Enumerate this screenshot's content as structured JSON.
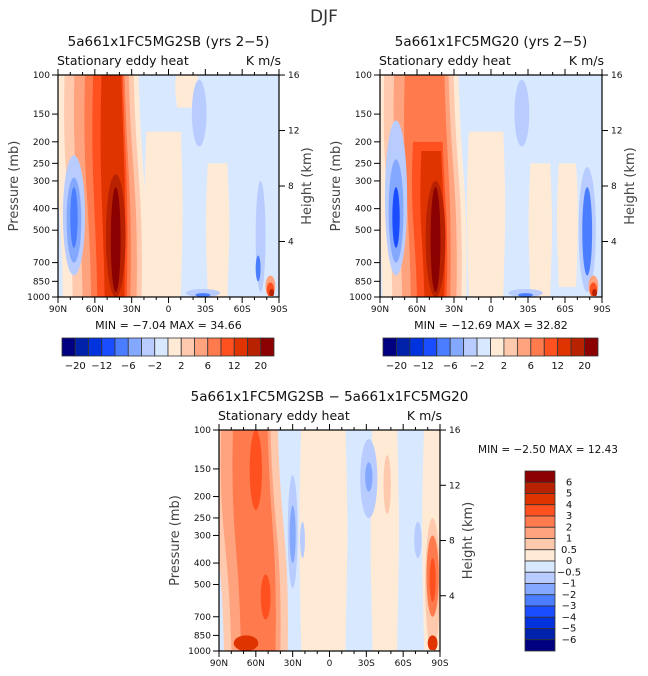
{
  "figure": {
    "main_title": "DJF"
  },
  "chart_data": [
    {
      "type": "heatmap",
      "id": "panel1",
      "title": "5a661x1FC5MG2SB (yrs 2-5)",
      "left_label": "Stationary eddy heat",
      "right_label": "K m/s",
      "xlabel": "",
      "ylabel": "Pressure (mb)",
      "y2label": "Height (km)",
      "x_ticks": [
        "90N",
        "60N",
        "30N",
        "0",
        "30S",
        "60S",
        "90S"
      ],
      "x_range": [
        90,
        -90
      ],
      "y_ticks": [
        100,
        150,
        200,
        250,
        300,
        400,
        500,
        700,
        850,
        1000
      ],
      "y_range": [
        100,
        1000
      ],
      "y2_ticks": [
        4,
        8,
        12,
        16
      ],
      "stats": "MIN =   -7.04   MAX =   34.66",
      "min": -7.04,
      "max": 34.66,
      "colorbar": {
        "orientation": "horizontal",
        "levels": [
          -20,
          -16,
          -12,
          -8,
          -6,
          -4,
          -2,
          0,
          2,
          4,
          6,
          8,
          12,
          16,
          20
        ],
        "labels": [
          "-20",
          "-12",
          "-6",
          "-2",
          "2",
          "6",
          "12",
          "20"
        ],
        "colors": [
          "#000080",
          "#0022aa",
          "#0033dd",
          "#1a4dff",
          "#4a7dff",
          "#85a8ff",
          "#b8ccff",
          "#d8e8ff",
          "#ffead6",
          "#ffc9ad",
          "#ffa37f",
          "#ff7a4d",
          "#ff5020",
          "#e03400",
          "#b82200",
          "#8b0000"
        ]
      },
      "features": [
        {
          "name": "main-northern-jet",
          "lat_center": 45,
          "p_range": [
            100,
            1000
          ],
          "level_max": 34.66
        },
        {
          "name": "polar-negative-north",
          "lat_center": 77,
          "p_range": [
            250,
            700
          ],
          "level_min": -6
        },
        {
          "name": "upper-tropical-negative",
          "lat_center": -25,
          "p_range": [
            120,
            200
          ],
          "level_min": -2
        },
        {
          "name": "antarctic-surface-positive",
          "lat_center": -82,
          "p_range": [
            800,
            1000
          ],
          "level_max": 12
        },
        {
          "name": "surface-negative-south",
          "lat_center": -28,
          "p_range": [
            900,
            1000
          ],
          "level_min": -7.04
        }
      ]
    },
    {
      "type": "heatmap",
      "id": "panel2",
      "title": "5a661x1FC5MG20 (yrs 2-5)",
      "left_label": "Stationary eddy heat",
      "right_label": "K m/s",
      "xlabel": "",
      "ylabel": "Pressure (mb)",
      "y2label": "Height (km)",
      "x_ticks": [
        "90N",
        "60N",
        "30N",
        "0",
        "30S",
        "60S",
        "90S"
      ],
      "x_range": [
        90,
        -90
      ],
      "y_ticks": [
        100,
        150,
        200,
        250,
        300,
        400,
        500,
        700,
        850,
        1000
      ],
      "y_range": [
        100,
        1000
      ],
      "y2_ticks": [
        4,
        8,
        12,
        16
      ],
      "stats": "MIN =  -12.69   MAX =   32.82",
      "min": -12.69,
      "max": 32.82,
      "colorbar": {
        "orientation": "horizontal",
        "levels": [
          -20,
          -16,
          -12,
          -8,
          -6,
          -4,
          -2,
          0,
          2,
          4,
          6,
          8,
          12,
          16,
          20
        ],
        "labels": [
          "-20",
          "-12",
          "-6",
          "-2",
          "2",
          "6",
          "12",
          "20"
        ],
        "colors": [
          "#000080",
          "#0022aa",
          "#0033dd",
          "#1a4dff",
          "#4a7dff",
          "#85a8ff",
          "#b8ccff",
          "#d8e8ff",
          "#ffead6",
          "#ffc9ad",
          "#ffa37f",
          "#ff7a4d",
          "#ff5020",
          "#e03400",
          "#b82200",
          "#8b0000"
        ]
      },
      "features": [
        {
          "name": "main-northern-jet",
          "lat_center": 45,
          "p_range": [
            100,
            1000
          ],
          "level_max": 32.82
        },
        {
          "name": "polar-negative-north",
          "lat_center": 77,
          "p_range": [
            200,
            700
          ],
          "level_min": -12.69
        },
        {
          "name": "antarctic-negative",
          "lat_center": -78,
          "p_range": [
            250,
            900
          ],
          "level_min": -8
        },
        {
          "name": "antarctic-surface-positive",
          "lat_center": -84,
          "p_range": [
            850,
            1000
          ],
          "level_max": 12
        }
      ]
    },
    {
      "type": "heatmap",
      "id": "panel3",
      "title": "5a661x1FC5MG2SB - 5a661x1FC5MG20",
      "left_label": "Stationary eddy heat",
      "right_label": "K m/s",
      "xlabel": "",
      "ylabel": "Pressure (mb)",
      "y2label": "Height (km)",
      "x_ticks": [
        "90N",
        "60N",
        "30N",
        "0",
        "30S",
        "60S",
        "90S"
      ],
      "x_range": [
        90,
        -90
      ],
      "y_ticks": [
        100,
        150,
        200,
        250,
        300,
        400,
        500,
        700,
        850,
        1000
      ],
      "y_range": [
        100,
        1000
      ],
      "y2_ticks": [
        4,
        8,
        12,
        16
      ],
      "stats": "MIN =   -2.50   MAX =   12.43",
      "min": -2.5,
      "max": 12.43,
      "colorbar": {
        "orientation": "vertical",
        "levels": [
          6,
          5,
          4,
          3,
          2,
          1,
          0.5,
          0,
          -0.5,
          -1,
          -2,
          -3,
          -4,
          -5,
          -6
        ],
        "labels": [
          "6",
          "5",
          "4",
          "3",
          "2",
          "1",
          "0.5",
          "0",
          "-0.5",
          "-1",
          "-2",
          "-3",
          "-4",
          "-5",
          "-6"
        ],
        "colors": [
          "#8b0000",
          "#b82200",
          "#e03400",
          "#ff5020",
          "#ff7a4d",
          "#ffa37f",
          "#ffc9ad",
          "#ffead6",
          "#d8e8ff",
          "#b8ccff",
          "#85a8ff",
          "#4a7dff",
          "#1a4dff",
          "#0033dd",
          "#0022aa",
          "#000080"
        ]
      },
      "features": [
        {
          "name": "northern-positive-band",
          "lat_center": 58,
          "p_range": [
            100,
            1000
          ],
          "level_max": 12.43
        },
        {
          "name": "polar-negative-north",
          "lat_center": 80,
          "p_range": [
            100,
            300
          ],
          "level_min": -2
        },
        {
          "name": "tropical-negative",
          "lat_center": 30,
          "p_range": [
            200,
            450
          ],
          "level_min": -2.5
        },
        {
          "name": "upper-southern-negative",
          "lat_center": -32,
          "p_range": [
            110,
            220
          ],
          "level_min": -2
        },
        {
          "name": "antarctic-positive",
          "lat_center": -85,
          "p_range": [
            250,
            1000
          ],
          "level_max": 6
        }
      ]
    }
  ]
}
